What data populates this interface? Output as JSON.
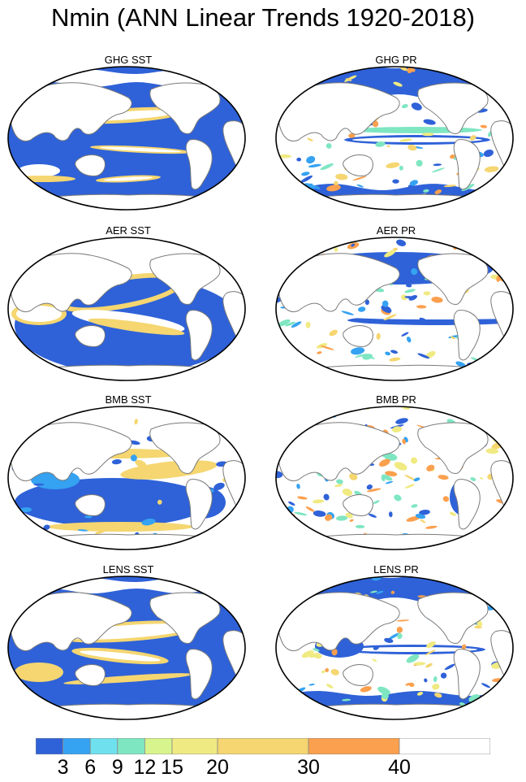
{
  "title": "Nmin (ANN Linear Trends 1920-2018)",
  "panels": [
    {
      "id": "ghg-sst",
      "label": "GHG SST",
      "field": "SST",
      "pattern": "ghg_sst"
    },
    {
      "id": "ghg-pr",
      "label": "GHG PR",
      "field": "PR",
      "pattern": "ghg_pr"
    },
    {
      "id": "aer-sst",
      "label": "AER SST",
      "field": "SST",
      "pattern": "aer_sst"
    },
    {
      "id": "aer-pr",
      "label": "AER PR",
      "field": "PR",
      "pattern": "aer_pr"
    },
    {
      "id": "bmb-sst",
      "label": "BMB SST",
      "field": "SST",
      "pattern": "bmb_sst"
    },
    {
      "id": "bmb-pr",
      "label": "BMB PR",
      "field": "PR",
      "pattern": "bmb_pr"
    },
    {
      "id": "lens-sst",
      "label": "LENS SST",
      "field": "SST",
      "pattern": "lens_sst"
    },
    {
      "id": "lens-pr",
      "label": "LENS PR",
      "field": "PR",
      "pattern": "lens_pr"
    }
  ],
  "colorbar": {
    "levels": [
      0,
      3,
      6,
      9,
      12,
      15,
      20,
      30,
      40,
      50
    ],
    "tick_labels": [
      "3",
      "6",
      "9",
      "12",
      "15",
      "20",
      "30",
      "40"
    ],
    "colors": [
      "#2f62d8",
      "#35a2f2",
      "#6fe0ee",
      "#7fe6c2",
      "#d8f48c",
      "#f0ea82",
      "#f5d670",
      "#fba04e",
      "#ffffff"
    ]
  },
  "map_style": {
    "land_color": "#ffffff",
    "coast_color": "#7a7a7a",
    "border_color": "#000000"
  }
}
